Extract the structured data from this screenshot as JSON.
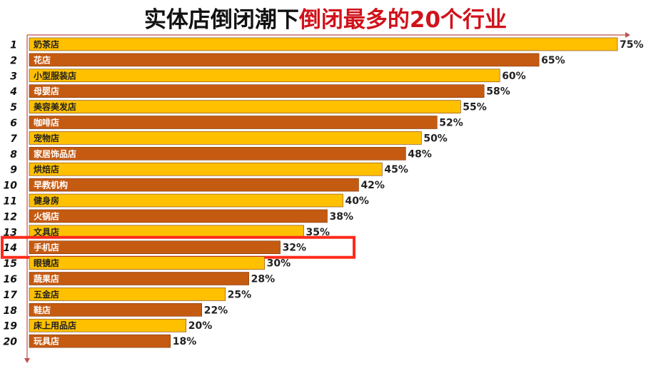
{
  "title": {
    "part1": "实体店倒闭潮下",
    "part2": "倒闭最多的20个行业"
  },
  "colors": {
    "gold": "#FFC000",
    "brown": "#C55A11",
    "highlight": "#FF2A1A",
    "title_red": "#D0121B",
    "axis": "#C0504D"
  },
  "highlight_rank": 14,
  "chart_data": {
    "type": "bar",
    "orientation": "horizontal",
    "title": "实体店倒闭潮下倒闭最多的20个行业",
    "xlim": [
      0,
      75
    ],
    "grid": false,
    "legend": "none",
    "categories": [
      "奶茶店",
      "花店",
      "小型服装店",
      "母婴店",
      "美容美发店",
      "咖啡店",
      "宠物店",
      "家居饰品店",
      "烘焙店",
      "早教机构",
      "健身房",
      "火锅店",
      "文具店",
      "手机店",
      "眼镜店",
      "蔬果店",
      "五金店",
      "鞋店",
      "床上用品店",
      "玩具店"
    ],
    "ranks": [
      "1",
      "2",
      "3",
      "4",
      "5",
      "6",
      "7",
      "8",
      "9",
      "10",
      "11",
      "12",
      "13",
      "14",
      "15",
      "16",
      "17",
      "18",
      "19",
      "20"
    ],
    "values": [
      75,
      65,
      60,
      58,
      55,
      52,
      50,
      48,
      45,
      42,
      40,
      38,
      35,
      32,
      30,
      28,
      25,
      22,
      20,
      18
    ],
    "value_labels": [
      "75%",
      "65%",
      "60%",
      "58%",
      "55%",
      "52%",
      "50%",
      "48%",
      "45%",
      "42%",
      "40%",
      "38%",
      "35%",
      "32%",
      "30%",
      "28%",
      "25%",
      "22%",
      "20%",
      "18%"
    ]
  }
}
